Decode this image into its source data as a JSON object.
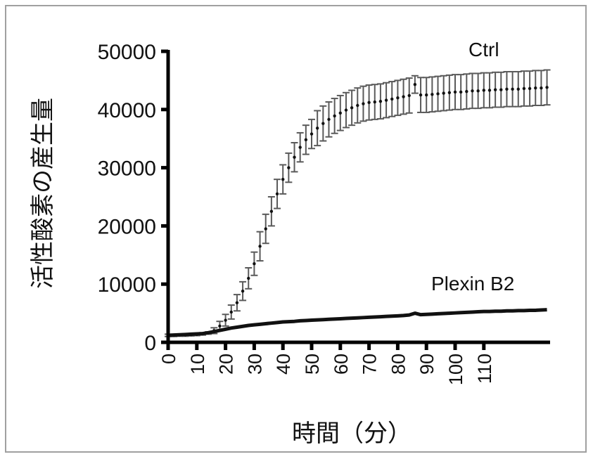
{
  "chart_data": {
    "type": "line",
    "title": "",
    "xlabel": "時間（分）",
    "ylabel": "活性酸素の産生量",
    "xlim": [
      0,
      133
    ],
    "ylim": [
      0,
      50000
    ],
    "xticks": [
      "0",
      "10",
      "20",
      "30",
      "40",
      "50",
      "60",
      "70",
      "80",
      "90",
      "100",
      "110"
    ],
    "yticks": [
      "0",
      "10000",
      "20000",
      "30000",
      "40000",
      "50000"
    ],
    "grid": false,
    "legend": "none (direct labels)",
    "x": [
      0,
      2,
      4,
      6,
      8,
      10,
      12,
      14,
      16,
      18,
      20,
      22,
      24,
      26,
      28,
      30,
      32,
      34,
      36,
      38,
      40,
      42,
      44,
      46,
      48,
      50,
      52,
      54,
      56,
      58,
      60,
      62,
      64,
      66,
      68,
      70,
      72,
      74,
      76,
      78,
      80,
      82,
      84,
      86,
      88,
      90,
      92,
      94,
      96,
      98,
      100,
      102,
      104,
      106,
      108,
      110,
      112,
      114,
      116,
      118,
      120,
      122,
      124,
      126,
      128,
      130,
      132
    ],
    "series": [
      {
        "name": "Ctrl",
        "color": "#111111",
        "error_color": "#5a5a5a",
        "values": [
          1200,
          1200,
          1250,
          1250,
          1300,
          1350,
          1450,
          1600,
          2000,
          2800,
          3800,
          5200,
          6800,
          8800,
          11000,
          13500,
          16500,
          19500,
          22500,
          25500,
          28000,
          30000,
          31800,
          33500,
          34800,
          35800,
          36800,
          37600,
          38300,
          38900,
          39400,
          39900,
          40300,
          40700,
          41000,
          41200,
          41300,
          41400,
          41600,
          41800,
          42000,
          42200,
          42400,
          44300,
          42500,
          42500,
          42600,
          42700,
          42800,
          42900,
          43000,
          43000,
          43100,
          43200,
          43200,
          43300,
          43300,
          43400,
          43400,
          43500,
          43500,
          43500,
          43600,
          43600,
          43700,
          43700,
          43800
        ],
        "error": [
          200,
          200,
          200,
          200,
          200,
          200,
          200,
          200,
          500,
          800,
          1000,
          1200,
          1400,
          1600,
          1800,
          2000,
          2500,
          2500,
          2500,
          2500,
          2500,
          2500,
          2500,
          2500,
          2500,
          2500,
          3000,
          3000,
          3000,
          3000,
          3000,
          3000,
          3000,
          3000,
          3000,
          3000,
          3000,
          3000,
          3000,
          3000,
          3000,
          3000,
          3000,
          1500,
          3000,
          3000,
          3000,
          3000,
          3000,
          3000,
          3000,
          3000,
          3000,
          3000,
          3000,
          3000,
          3000,
          3000,
          3000,
          3000,
          3000,
          3000,
          3000,
          3000,
          3000,
          3000,
          3000
        ]
      },
      {
        "name": "Plexin B2",
        "color": "#111111",
        "values": [
          1200,
          1250,
          1300,
          1350,
          1400,
          1450,
          1500,
          1650,
          1850,
          2050,
          2250,
          2450,
          2600,
          2750,
          2900,
          3000,
          3100,
          3200,
          3300,
          3400,
          3500,
          3550,
          3600,
          3700,
          3750,
          3800,
          3850,
          3900,
          3950,
          4000,
          4050,
          4100,
          4150,
          4200,
          4250,
          4300,
          4350,
          4400,
          4450,
          4500,
          4550,
          4600,
          4700,
          5000,
          4750,
          4800,
          4850,
          4900,
          4950,
          5000,
          5050,
          5100,
          5150,
          5200,
          5250,
          5300,
          5300,
          5350,
          5350,
          5400,
          5400,
          5450,
          5450,
          5500,
          5500,
          5550,
          5600
        ]
      }
    ]
  }
}
